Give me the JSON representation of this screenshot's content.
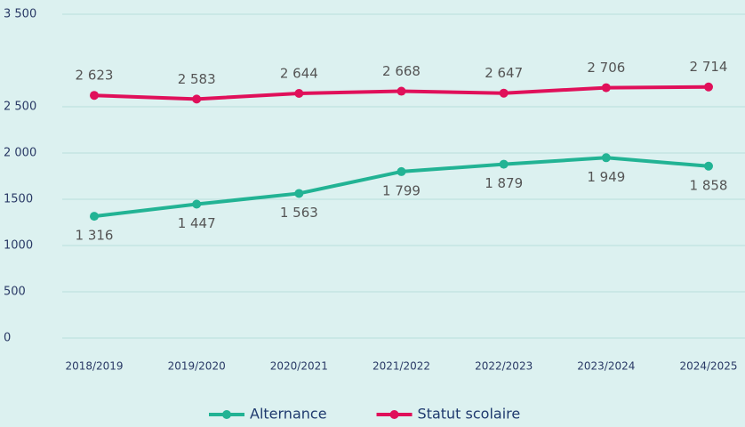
{
  "chart_data": {
    "type": "line",
    "categories": [
      "2018/2019",
      "2019/2020",
      "2020/2021",
      "2021/2022",
      "2022/2023",
      "2023/2024",
      "2024/2025"
    ],
    "series": [
      {
        "name": "Alternance",
        "color": "#22b394",
        "values": [
          1316,
          1447,
          1563,
          1799,
          1879,
          1949,
          1858
        ],
        "value_labels": [
          "1 316",
          "1 447",
          "1 563",
          "1 799",
          "1 879",
          "1 949",
          "1 858"
        ]
      },
      {
        "name": "Statut scolaire",
        "color": "#e0105a",
        "values": [
          2623,
          2583,
          2644,
          2668,
          2647,
          2706,
          2714
        ],
        "value_labels": [
          "2 623",
          "2 583",
          "2 644",
          "2 668",
          "2 647",
          "2 706",
          "2 714"
        ]
      }
    ],
    "ylim": [
      0,
      3500
    ],
    "yticks": [
      0,
      500,
      1000,
      1500,
      {
        "value": 2000,
        "label": "2 000"
      },
      {
        "value": 2500,
        "label": "2 500"
      },
      {
        "value": 3500,
        "label": "3 500"
      }
    ],
    "grid": true,
    "legend": "bottom"
  }
}
